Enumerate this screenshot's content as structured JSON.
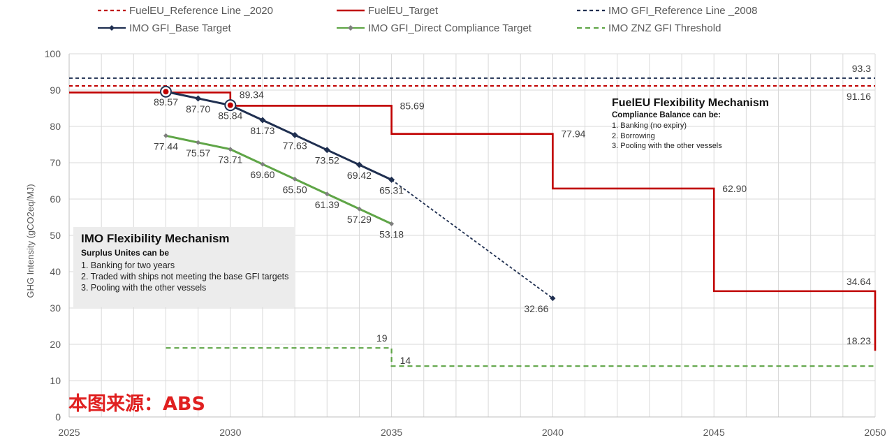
{
  "chart_data": {
    "type": "line",
    "title": "",
    "ylabel": "GHG Intensity (gCO2eq/MJ)",
    "xlabel": "",
    "xlim": [
      2025,
      2050
    ],
    "ylim": [
      0,
      100
    ],
    "xticks": [
      "2025",
      "2030",
      "2035",
      "2040",
      "2045",
      "2050"
    ],
    "yticks": [
      "0",
      "10",
      "20",
      "30",
      "40",
      "50",
      "60",
      "70",
      "80",
      "90",
      "100"
    ],
    "grid": true,
    "legend_position": "top",
    "series": [
      {
        "name": "FuelEU_Reference Line _2020",
        "color": "#c00000",
        "style": "dashed-line",
        "points": [
          [
            2025,
            91.16
          ],
          [
            2050,
            91.16
          ]
        ]
      },
      {
        "name": "FuelEU_Target",
        "color": "#c00000",
        "style": "step-line",
        "points": [
          [
            2025,
            89.34
          ],
          [
            2030,
            89.34
          ],
          [
            2030,
            85.69
          ],
          [
            2035,
            85.69
          ],
          [
            2035,
            77.94
          ],
          [
            2040,
            77.94
          ],
          [
            2040,
            62.9
          ],
          [
            2045,
            62.9
          ],
          [
            2045,
            34.64
          ],
          [
            2050,
            34.64
          ],
          [
            2050,
            18.23
          ]
        ]
      },
      {
        "name": "IMO GFI_Reference Line _2008",
        "color": "#1f2f50",
        "style": "dashed-line",
        "points": [
          [
            2025,
            93.3
          ],
          [
            2050,
            93.3
          ]
        ]
      },
      {
        "name": "IMO GFI_Base Target",
        "color": "#1f2f50",
        "style": "marker-line",
        "points": [
          [
            2028,
            89.57
          ],
          [
            2029,
            87.7
          ],
          [
            2030,
            85.84
          ],
          [
            2031,
            81.73
          ],
          [
            2032,
            77.63
          ],
          [
            2033,
            73.52
          ],
          [
            2034,
            69.42
          ],
          [
            2035,
            65.31
          ]
        ],
        "extension": [
          [
            2035,
            65.31
          ],
          [
            2040,
            32.66
          ]
        ]
      },
      {
        "name": "IMO GFI_Direct Compliance Target",
        "color": "#5fa547",
        "style": "marker-line",
        "points": [
          [
            2028,
            77.44
          ],
          [
            2029,
            75.57
          ],
          [
            2030,
            73.71
          ],
          [
            2031,
            69.6
          ],
          [
            2032,
            65.5
          ],
          [
            2033,
            61.39
          ],
          [
            2034,
            57.29
          ],
          [
            2035,
            53.18
          ]
        ]
      },
      {
        "name": "IMO ZNZ GFI Threshold",
        "color": "#5fa547",
        "style": "dashed-step-line",
        "points": [
          [
            2028,
            19
          ],
          [
            2035,
            19
          ],
          [
            2035,
            14
          ],
          [
            2050,
            14
          ]
        ]
      }
    ],
    "data_labels": [
      {
        "text": "93.3",
        "x": 2050,
        "y": 93.3,
        "pos": "above-left",
        "series": 2
      },
      {
        "text": "91.16",
        "x": 2050,
        "y": 91.16,
        "pos": "below-left",
        "series": 0
      },
      {
        "text": "89.34",
        "x": 2030,
        "y": 89.34,
        "pos": "below-right",
        "series": 1
      },
      {
        "text": "85.69",
        "x": 2035,
        "y": 85.69,
        "pos": "right",
        "series": 1
      },
      {
        "text": "77.94",
        "x": 2040,
        "y": 77.94,
        "pos": "right",
        "series": 1
      },
      {
        "text": "62.90",
        "x": 2045,
        "y": 62.9,
        "pos": "right",
        "series": 1
      },
      {
        "text": "34.64",
        "x": 2050,
        "y": 34.64,
        "pos": "above-left",
        "series": 1
      },
      {
        "text": "18.23",
        "x": 2050,
        "y": 18.23,
        "pos": "above-left",
        "series": 1
      },
      {
        "text": "89.57",
        "x": 2028,
        "y": 89.57,
        "pos": "below",
        "series": 3
      },
      {
        "text": "87.70",
        "x": 2029,
        "y": 87.7,
        "pos": "below",
        "series": 3
      },
      {
        "text": "85.84",
        "x": 2030,
        "y": 85.84,
        "pos": "below",
        "series": 3
      },
      {
        "text": "81.73",
        "x": 2031,
        "y": 81.73,
        "pos": "below",
        "series": 3
      },
      {
        "text": "77.63",
        "x": 2032,
        "y": 77.63,
        "pos": "below",
        "series": 3
      },
      {
        "text": "73.52",
        "x": 2033,
        "y": 73.52,
        "pos": "below",
        "series": 3
      },
      {
        "text": "69.42",
        "x": 2034,
        "y": 69.42,
        "pos": "below",
        "series": 3
      },
      {
        "text": "65.31",
        "x": 2035,
        "y": 65.31,
        "pos": "below",
        "series": 3
      },
      {
        "text": "32.66",
        "x": 2040,
        "y": 32.66,
        "pos": "below-left",
        "series": 3
      },
      {
        "text": "77.44",
        "x": 2028,
        "y": 77.44,
        "pos": "below",
        "series": 4
      },
      {
        "text": "75.57",
        "x": 2029,
        "y": 75.57,
        "pos": "below",
        "series": 4
      },
      {
        "text": "73.71",
        "x": 2030,
        "y": 73.71,
        "pos": "below",
        "series": 4
      },
      {
        "text": "69.60",
        "x": 2031,
        "y": 69.6,
        "pos": "below",
        "series": 4
      },
      {
        "text": "65.50",
        "x": 2032,
        "y": 65.5,
        "pos": "below",
        "series": 4
      },
      {
        "text": "61.39",
        "x": 2033,
        "y": 61.39,
        "pos": "below",
        "series": 4
      },
      {
        "text": "57.29",
        "x": 2034,
        "y": 57.29,
        "pos": "below",
        "series": 4
      },
      {
        "text": "53.18",
        "x": 2035,
        "y": 53.18,
        "pos": "below",
        "series": 4
      },
      {
        "text": "19",
        "x": 2035,
        "y": 19,
        "pos": "above-left",
        "series": 5
      },
      {
        "text": "14",
        "x": 2035,
        "y": 14,
        "pos": "above-right",
        "series": 5
      }
    ],
    "highlighted_points": [
      [
        2028,
        89.57
      ],
      [
        2030,
        85.84
      ]
    ]
  },
  "annotations": {
    "imo": {
      "title": "IMO Flexibility Mechanism",
      "subtitle": "Surplus Unites can be",
      "items": [
        "1. Banking for two years",
        "2. Traded with ships not meeting the base GFI targets",
        "3. Pooling with the other vessels"
      ]
    },
    "fueleu": {
      "title": "FuelEU Flexibility Mechanism",
      "subtitle": "Compliance Balance can be:",
      "items": [
        "1. Banking (no expiry)",
        "2. Borrowing",
        "3. Pooling with the other vessels"
      ]
    }
  },
  "watermark": "本图来源：ABS"
}
